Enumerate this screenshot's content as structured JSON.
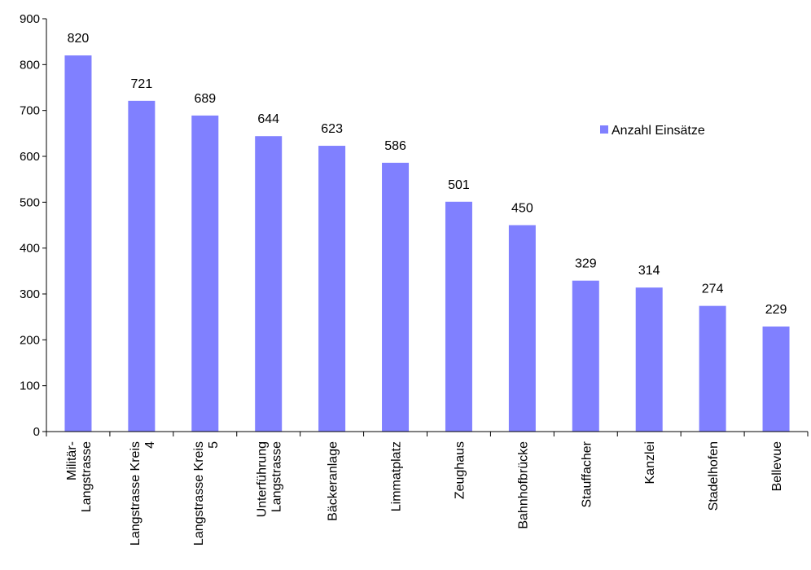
{
  "chart_data": {
    "type": "bar",
    "categories": [
      [
        "Militär-",
        "Langstrasse"
      ],
      [
        "Langstrasse Kreis",
        "4"
      ],
      [
        "Langstrasse Kreis",
        "5"
      ],
      [
        "Unterführung",
        "Langstrasse"
      ],
      [
        "Bäckeranlage"
      ],
      [
        "Limmatplatz"
      ],
      [
        "Zeughaus"
      ],
      [
        "Bahnhofbrücke"
      ],
      [
        "Stauffacher"
      ],
      [
        "Kanzlei"
      ],
      [
        "Stadelhofen"
      ],
      [
        "Bellevue"
      ]
    ],
    "series": [
      {
        "name": "Anzahl Einsätze",
        "values": [
          820,
          721,
          689,
          644,
          623,
          586,
          501,
          450,
          329,
          314,
          274,
          229
        ],
        "color": "#8080ff"
      }
    ],
    "ylim": [
      0,
      900
    ],
    "yticks": [
      "0",
      "100",
      "200",
      "300",
      "400",
      "500",
      "600",
      "700",
      "800",
      "900"
    ],
    "xlabel": "",
    "ylabel": "",
    "title": "",
    "grid": false,
    "legend_position": "right"
  }
}
